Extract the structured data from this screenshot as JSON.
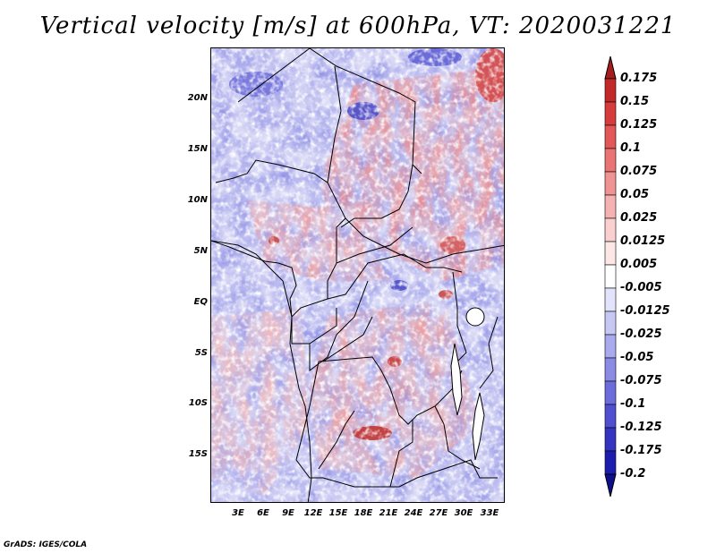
{
  "title": "Vertical velocity [m/s] at 600hPa, VT: 2020031221",
  "credit": "GrADS: IGES/COLA",
  "map": {
    "region": "Central Africa",
    "variable": "vertical velocity",
    "units": "m/s",
    "level_hPa": 600,
    "valid_time": "2020031221",
    "lat_labels": [
      "20N",
      "15N",
      "10N",
      "5N",
      "EQ",
      "5S",
      "10S",
      "15S"
    ],
    "lon_labels": [
      "3E",
      "6E",
      "9E",
      "12E",
      "15E",
      "18E",
      "21E",
      "24E",
      "27E",
      "30E",
      "33E"
    ]
  },
  "colorbar": {
    "levels": [
      "0.175",
      "0.15",
      "0.125",
      "0.1",
      "0.075",
      "0.05",
      "0.025",
      "0.0125",
      "0.005",
      "-0.005",
      "-0.0125",
      "-0.025",
      "-0.05",
      "-0.075",
      "-0.1",
      "-0.125",
      "-0.175",
      "-0.2"
    ],
    "colors": [
      "#a51d1d",
      "#c22a2a",
      "#d63c3c",
      "#e25757",
      "#ea7474",
      "#f09393",
      "#f5b2b2",
      "#f9cfcf",
      "#fce6e6",
      "#ffffff",
      "#e3e3fb",
      "#c7c7f4",
      "#a9a9ee",
      "#8b8be6",
      "#6c6cdc",
      "#4f4fd0",
      "#3434c1",
      "#1c1cad",
      "#0f0f8c"
    ]
  }
}
